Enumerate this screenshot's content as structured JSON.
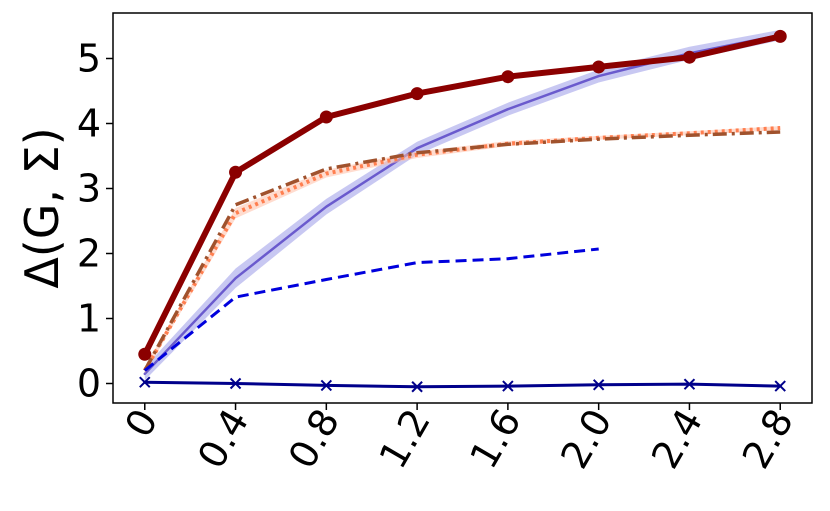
{
  "chart_data": {
    "type": "line",
    "title": "",
    "xlabel": "",
    "ylabel": "Δ(G, Σ)",
    "xlim": [
      -0.14,
      2.94
    ],
    "ylim": [
      -0.3,
      5.7
    ],
    "x_ticks": [
      "0",
      "0.4",
      "0.8",
      "1.2",
      "1.6",
      "2.0",
      "2.4",
      "2.8"
    ],
    "y_ticks": [
      "0",
      "1",
      "2",
      "3",
      "4",
      "5"
    ],
    "x_tick_values": [
      0,
      0.4,
      0.8,
      1.2,
      1.6,
      2.0,
      2.4,
      2.8
    ],
    "y_tick_values": [
      0,
      1,
      2,
      3,
      4,
      5
    ],
    "grid": false,
    "legend": "none",
    "series": [
      {
        "style": "solid-band",
        "color": "#6a5acd",
        "band_color": "#9a9ae8",
        "x": [
          0,
          0.4,
          0.8,
          1.2,
          1.6,
          2.0,
          2.4,
          2.8
        ],
        "values": [
          0.15,
          1.62,
          2.72,
          3.62,
          4.22,
          4.73,
          5.08,
          5.36
        ],
        "band": [
          0.1,
          0.15,
          0.12,
          0.1,
          0.1,
          0.1,
          0.1,
          0.08
        ]
      },
      {
        "style": "dotted-band",
        "color": "#ff7f50",
        "band_color": "#ffc0a8",
        "x": [
          0,
          0.4,
          0.8,
          1.2,
          1.6,
          2.0,
          2.4,
          2.8
        ],
        "values": [
          0.2,
          2.62,
          3.23,
          3.52,
          3.69,
          3.78,
          3.85,
          3.93
        ],
        "band": [
          0.05,
          0.08,
          0.06,
          0.05,
          0.04,
          0.03,
          0.03,
          0.03
        ]
      },
      {
        "style": "dashdot",
        "color": "#a0522d",
        "x": [
          0,
          0.4,
          0.8,
          1.2,
          1.6,
          2.0,
          2.4,
          2.8
        ],
        "values": [
          0.2,
          2.75,
          3.3,
          3.55,
          3.68,
          3.76,
          3.82,
          3.87
        ]
      },
      {
        "style": "dashed",
        "color": "#0000dd",
        "x": [
          0,
          0.4,
          0.8,
          1.2,
          1.6,
          2.0
        ],
        "values": [
          0.2,
          1.33,
          1.6,
          1.86,
          1.92,
          2.07
        ]
      },
      {
        "style": "solid-x",
        "color": "#00008b",
        "x": [
          0,
          0.4,
          0.8,
          1.2,
          1.6,
          2.0,
          2.4,
          2.8
        ],
        "values": [
          0.02,
          0.0,
          -0.03,
          -0.05,
          -0.04,
          -0.02,
          -0.01,
          -0.04
        ]
      },
      {
        "style": "solid-dot",
        "color": "#8b0000",
        "x": [
          0,
          0.4,
          0.8,
          1.2,
          1.6,
          2.0,
          2.4,
          2.8
        ],
        "values": [
          0.45,
          3.25,
          4.1,
          4.46,
          4.72,
          4.87,
          5.02,
          5.34
        ]
      }
    ]
  }
}
